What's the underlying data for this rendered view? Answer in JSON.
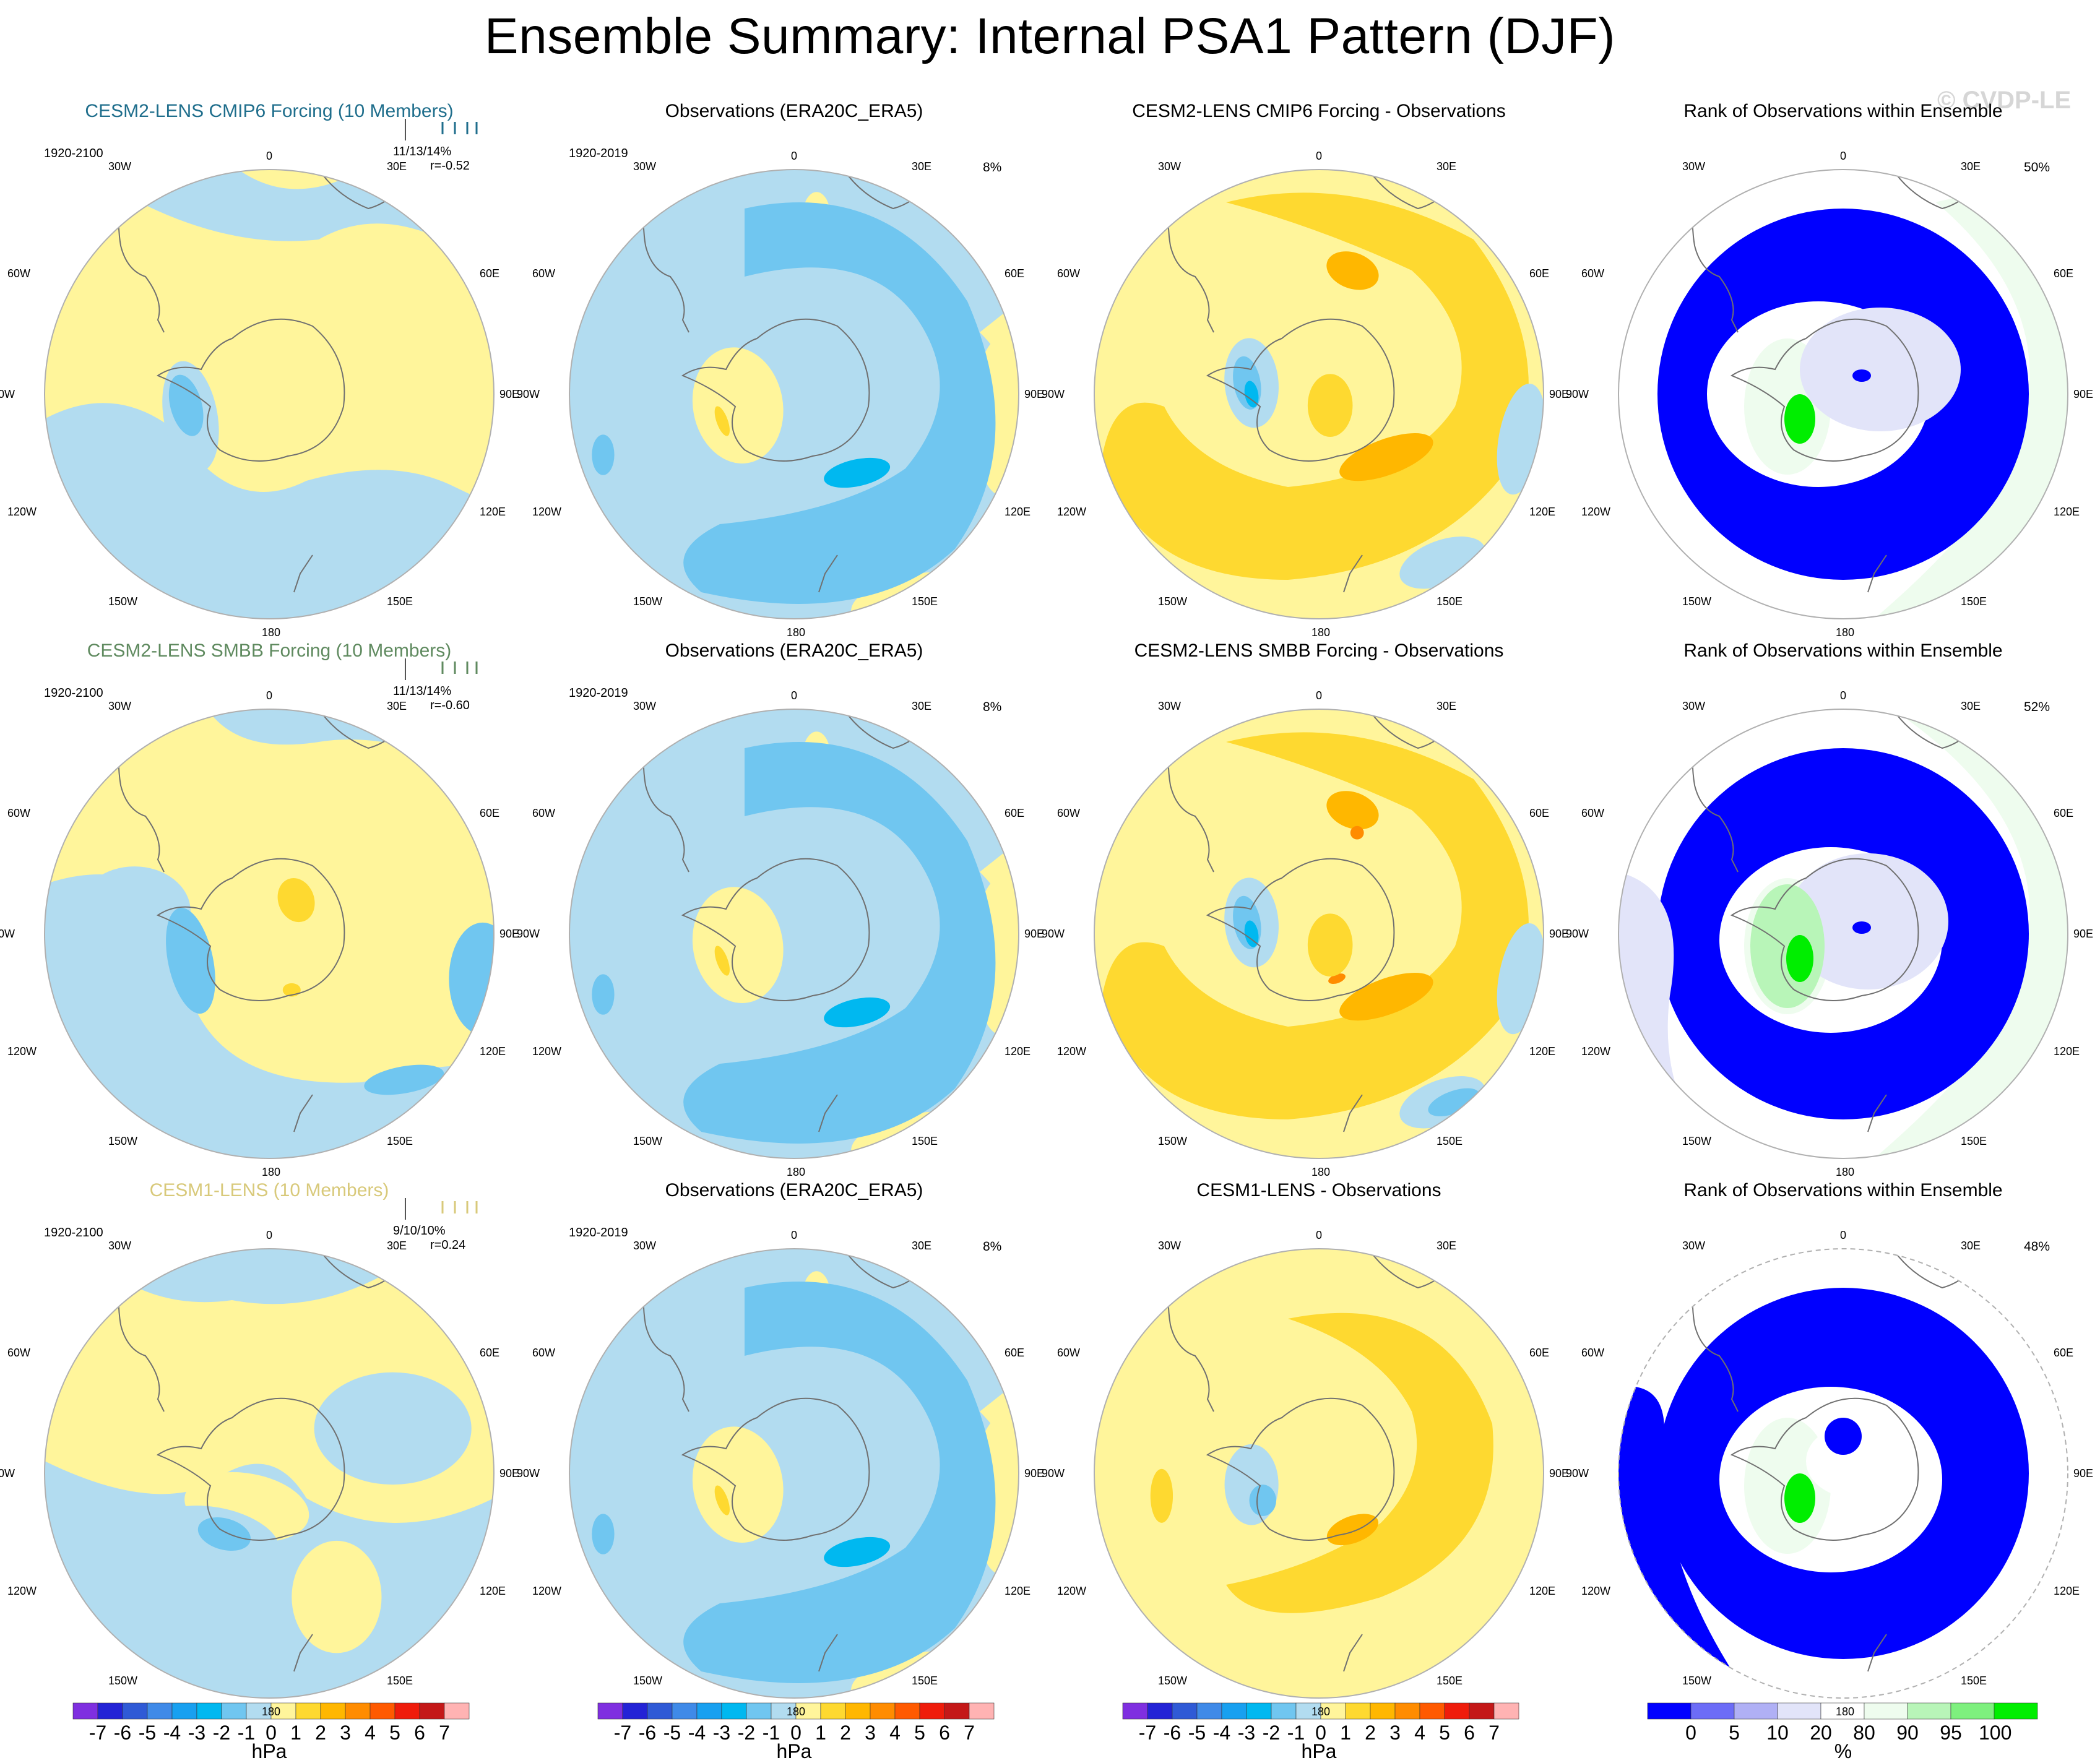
{
  "title": "Ensemble Summary: Internal PSA1 Pattern (DJF)",
  "watermark": "© CVDP-LE",
  "colors": {
    "background": "#ffffff",
    "row_title_colors": [
      "#1f6e8c",
      "#5f8a5f",
      "#d8c97a"
    ],
    "contour_levels": [
      "#7f2fe0",
      "#2323d6",
      "#2f5ad6",
      "#3f8ae8",
      "#18a0f0",
      "#00b8f0",
      "#70c6f0",
      "#b2dcf0",
      "#fff59b",
      "#fed930",
      "#ffb700",
      "#ff8c00",
      "#ff5a00",
      "#ef1c0b",
      "#c41818",
      "#ffb3b3"
    ],
    "rank_levels": [
      "#0000ff",
      "#6c6cf7",
      "#b0b0f5",
      "#e2e4f9",
      "#ffffff",
      "#eefcee",
      "#b8f5b8",
      "#7ef07e",
      "#00ee00"
    ],
    "coast": "#707070"
  },
  "longitude_labels": {
    "top": "0",
    "bottom": "180",
    "upper_left": "30W",
    "upper_right": "30E",
    "mid_upper_left": "60W",
    "mid_upper_right": "60E",
    "left": "90W",
    "right": "90E",
    "mid_lower_left": "120W",
    "mid_lower_right": "120E",
    "lower_left": "150W",
    "lower_right": "150E"
  },
  "rows": [
    {
      "model_title": "CESM2-LENS CMIP6 Forcing (10 Members)",
      "model_period": "1920-2100",
      "model_stats": "11/13/14%",
      "model_r": "r=-0.52",
      "obs_title": "Observations (ERA20C_ERA5)",
      "obs_period": "1920-2019",
      "obs_pct": "8%",
      "diff_title": "CESM2-LENS CMIP6 Forcing - Observations",
      "rank_title": "Rank of Observations within Ensemble",
      "rank_pct": "50%"
    },
    {
      "model_title": "CESM2-LENS SMBB Forcing (10 Members)",
      "model_period": "1920-2100",
      "model_stats": "11/13/14%",
      "model_r": "r=-0.60",
      "obs_title": "Observations (ERA20C_ERA5)",
      "obs_period": "1920-2019",
      "obs_pct": "8%",
      "diff_title": "CESM2-LENS SMBB Forcing - Observations",
      "rank_title": "Rank of Observations within Ensemble",
      "rank_pct": "52%"
    },
    {
      "model_title": "CESM1-LENS (10 Members)",
      "model_period": "1920-2100",
      "model_stats": "9/10/10%",
      "model_r": "r=0.24",
      "obs_title": "Observations (ERA20C_ERA5)",
      "obs_period": "1920-2019",
      "obs_pct": "8%",
      "diff_title": "CESM1-LENS - Observations",
      "rank_title": "Rank of Observations within Ensemble",
      "rank_pct": "48%"
    }
  ],
  "colorbars": {
    "hpa_ticks": [
      "-7",
      "-6",
      "-5",
      "-4",
      "-3",
      "-2",
      "-1",
      "0",
      "1",
      "2",
      "3",
      "4",
      "5",
      "6",
      "7"
    ],
    "hpa_unit": "hPa",
    "rank_ticks": [
      "0",
      "5",
      "10",
      "20",
      "80",
      "90",
      "95",
      "100"
    ],
    "rank_unit": "%"
  },
  "chart_data": [
    {
      "type": "heatmap",
      "panel": "row1-model",
      "title": "CESM2-LENS CMIP6 Forcing (10 Members)",
      "units": "hPa",
      "levels": [
        -7,
        -6,
        -5,
        -4,
        -3,
        -2,
        -1,
        0,
        1,
        2,
        3,
        4,
        5,
        6,
        7
      ],
      "value_range": [
        -2,
        1
      ]
    },
    {
      "type": "heatmap",
      "panel": "row1-obs",
      "title": "Observations (ERA20C_ERA5)",
      "units": "hPa",
      "levels": [
        -7,
        -6,
        -5,
        -4,
        -3,
        -2,
        -1,
        0,
        1,
        2,
        3,
        4,
        5,
        6,
        7
      ],
      "value_range": [
        -3,
        2
      ]
    },
    {
      "type": "heatmap",
      "panel": "row1-diff",
      "title": "CESM2-LENS CMIP6 Forcing - Observations",
      "units": "hPa",
      "levels": [
        -7,
        -6,
        -5,
        -4,
        -3,
        -2,
        -1,
        0,
        1,
        2,
        3,
        4,
        5,
        6,
        7
      ],
      "value_range": [
        -3,
        3
      ]
    },
    {
      "type": "heatmap",
      "panel": "row1-rank",
      "title": "Rank of Observations within Ensemble",
      "units": "%",
      "levels": [
        0,
        5,
        10,
        20,
        80,
        90,
        95,
        100
      ],
      "value": "50%"
    },
    {
      "type": "heatmap",
      "panel": "row2-model",
      "title": "CESM2-LENS SMBB Forcing (10 Members)",
      "units": "hPa",
      "levels": [
        -7,
        -6,
        -5,
        -4,
        -3,
        -2,
        -1,
        0,
        1,
        2,
        3,
        4,
        5,
        6,
        7
      ],
      "value_range": [
        -2,
        2
      ]
    },
    {
      "type": "heatmap",
      "panel": "row2-obs",
      "title": "Observations (ERA20C_ERA5)",
      "units": "hPa",
      "levels": [
        -7,
        -6,
        -5,
        -4,
        -3,
        -2,
        -1,
        0,
        1,
        2,
        3,
        4,
        5,
        6,
        7
      ],
      "value_range": [
        -3,
        2
      ]
    },
    {
      "type": "heatmap",
      "panel": "row2-diff",
      "title": "CESM2-LENS SMBB Forcing - Observations",
      "units": "hPa",
      "levels": [
        -7,
        -6,
        -5,
        -4,
        -3,
        -2,
        -1,
        0,
        1,
        2,
        3,
        4,
        5,
        6,
        7
      ],
      "value_range": [
        -3,
        4
      ]
    },
    {
      "type": "heatmap",
      "panel": "row2-rank",
      "title": "Rank of Observations within Ensemble",
      "units": "%",
      "levels": [
        0,
        5,
        10,
        20,
        80,
        90,
        95,
        100
      ],
      "value": "52%"
    },
    {
      "type": "heatmap",
      "panel": "row3-model",
      "title": "CESM1-LENS (10 Members)",
      "units": "hPa",
      "levels": [
        -7,
        -6,
        -5,
        -4,
        -3,
        -2,
        -1,
        0,
        1,
        2,
        3,
        4,
        5,
        6,
        7
      ],
      "value_range": [
        -2,
        1
      ]
    },
    {
      "type": "heatmap",
      "panel": "row3-obs",
      "title": "Observations (ERA20C_ERA5)",
      "units": "hPa",
      "levels": [
        -7,
        -6,
        -5,
        -4,
        -3,
        -2,
        -1,
        0,
        1,
        2,
        3,
        4,
        5,
        6,
        7
      ],
      "value_range": [
        -3,
        2
      ]
    },
    {
      "type": "heatmap",
      "panel": "row3-diff",
      "title": "CESM1-LENS - Observations",
      "units": "hPa",
      "levels": [
        -7,
        -6,
        -5,
        -4,
        -3,
        -2,
        -1,
        0,
        1,
        2,
        3,
        4,
        5,
        6,
        7
      ],
      "value_range": [
        -2,
        3
      ]
    },
    {
      "type": "heatmap",
      "panel": "row3-rank",
      "title": "Rank of Observations within Ensemble",
      "units": "%",
      "levels": [
        0,
        5,
        10,
        20,
        80,
        90,
        95,
        100
      ],
      "value": "48%"
    }
  ]
}
